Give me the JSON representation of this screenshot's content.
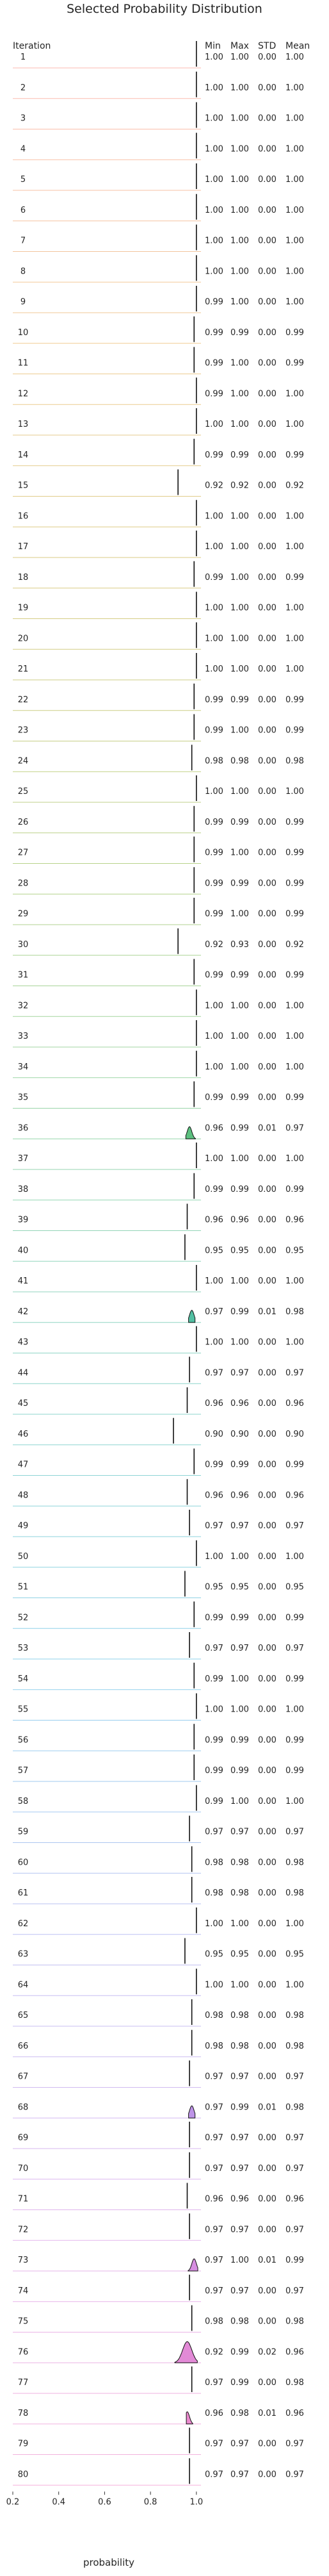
{
  "chart_data": {
    "type": "ridgeline",
    "title": "Selected Probability Distribution",
    "row_header": "Iteration",
    "stat_headers": [
      "Min",
      "Max",
      "STD",
      "Mean"
    ],
    "xlabel": "probability",
    "xlim": [
      0.2,
      1.02
    ],
    "x_ticks": [
      0.2,
      0.4,
      0.6,
      0.8,
      1.0
    ],
    "x_tick_labels": [
      "0.2",
      "0.4",
      "0.6",
      "0.8",
      "1.0"
    ],
    "colormap": [
      "#fb8072",
      "#e4a23a",
      "#b7a21d",
      "#7bae2a",
      "#3fb56a",
      "#2fb3a5",
      "#36ace0",
      "#8d8be8",
      "#c77ae0",
      "#f073c0"
    ],
    "rows": [
      {
        "iteration": "1",
        "min": "1.00",
        "max": "1.00",
        "std": "0.00",
        "mean": "1.00"
      },
      {
        "iteration": "2",
        "min": "1.00",
        "max": "1.00",
        "std": "0.00",
        "mean": "1.00"
      },
      {
        "iteration": "3",
        "min": "1.00",
        "max": "1.00",
        "std": "0.00",
        "mean": "1.00"
      },
      {
        "iteration": "4",
        "min": "1.00",
        "max": "1.00",
        "std": "0.00",
        "mean": "1.00"
      },
      {
        "iteration": "5",
        "min": "1.00",
        "max": "1.00",
        "std": "0.00",
        "mean": "1.00"
      },
      {
        "iteration": "6",
        "min": "1.00",
        "max": "1.00",
        "std": "0.00",
        "mean": "1.00"
      },
      {
        "iteration": "7",
        "min": "1.00",
        "max": "1.00",
        "std": "0.00",
        "mean": "1.00"
      },
      {
        "iteration": "8",
        "min": "1.00",
        "max": "1.00",
        "std": "0.00",
        "mean": "1.00"
      },
      {
        "iteration": "9",
        "min": "0.99",
        "max": "1.00",
        "std": "0.00",
        "mean": "1.00"
      },
      {
        "iteration": "10",
        "min": "0.99",
        "max": "0.99",
        "std": "0.00",
        "mean": "0.99"
      },
      {
        "iteration": "11",
        "min": "0.99",
        "max": "1.00",
        "std": "0.00",
        "mean": "0.99"
      },
      {
        "iteration": "12",
        "min": "0.99",
        "max": "1.00",
        "std": "0.00",
        "mean": "1.00"
      },
      {
        "iteration": "13",
        "min": "1.00",
        "max": "1.00",
        "std": "0.00",
        "mean": "1.00"
      },
      {
        "iteration": "14",
        "min": "0.99",
        "max": "0.99",
        "std": "0.00",
        "mean": "0.99"
      },
      {
        "iteration": "15",
        "min": "0.92",
        "max": "0.92",
        "std": "0.00",
        "mean": "0.92"
      },
      {
        "iteration": "16",
        "min": "1.00",
        "max": "1.00",
        "std": "0.00",
        "mean": "1.00"
      },
      {
        "iteration": "17",
        "min": "1.00",
        "max": "1.00",
        "std": "0.00",
        "mean": "1.00"
      },
      {
        "iteration": "18",
        "min": "0.99",
        "max": "1.00",
        "std": "0.00",
        "mean": "0.99"
      },
      {
        "iteration": "19",
        "min": "1.00",
        "max": "1.00",
        "std": "0.00",
        "mean": "1.00"
      },
      {
        "iteration": "20",
        "min": "1.00",
        "max": "1.00",
        "std": "0.00",
        "mean": "1.00"
      },
      {
        "iteration": "21",
        "min": "1.00",
        "max": "1.00",
        "std": "0.00",
        "mean": "1.00"
      },
      {
        "iteration": "22",
        "min": "0.99",
        "max": "0.99",
        "std": "0.00",
        "mean": "0.99"
      },
      {
        "iteration": "23",
        "min": "0.99",
        "max": "1.00",
        "std": "0.00",
        "mean": "0.99"
      },
      {
        "iteration": "24",
        "min": "0.98",
        "max": "0.98",
        "std": "0.00",
        "mean": "0.98"
      },
      {
        "iteration": "25",
        "min": "1.00",
        "max": "1.00",
        "std": "0.00",
        "mean": "1.00"
      },
      {
        "iteration": "26",
        "min": "0.99",
        "max": "0.99",
        "std": "0.00",
        "mean": "0.99"
      },
      {
        "iteration": "27",
        "min": "0.99",
        "max": "1.00",
        "std": "0.00",
        "mean": "0.99"
      },
      {
        "iteration": "28",
        "min": "0.99",
        "max": "0.99",
        "std": "0.00",
        "mean": "0.99"
      },
      {
        "iteration": "29",
        "min": "0.99",
        "max": "1.00",
        "std": "0.00",
        "mean": "0.99"
      },
      {
        "iteration": "30",
        "min": "0.92",
        "max": "0.93",
        "std": "0.00",
        "mean": "0.92"
      },
      {
        "iteration": "31",
        "min": "0.99",
        "max": "0.99",
        "std": "0.00",
        "mean": "0.99"
      },
      {
        "iteration": "32",
        "min": "1.00",
        "max": "1.00",
        "std": "0.00",
        "mean": "1.00"
      },
      {
        "iteration": "33",
        "min": "1.00",
        "max": "1.00",
        "std": "0.00",
        "mean": "1.00"
      },
      {
        "iteration": "34",
        "min": "1.00",
        "max": "1.00",
        "std": "0.00",
        "mean": "1.00"
      },
      {
        "iteration": "35",
        "min": "0.99",
        "max": "0.99",
        "std": "0.00",
        "mean": "0.99"
      },
      {
        "iteration": "36",
        "min": "0.96",
        "max": "0.99",
        "std": "0.01",
        "mean": "0.97"
      },
      {
        "iteration": "37",
        "min": "1.00",
        "max": "1.00",
        "std": "0.00",
        "mean": "1.00"
      },
      {
        "iteration": "38",
        "min": "0.99",
        "max": "0.99",
        "std": "0.00",
        "mean": "0.99"
      },
      {
        "iteration": "39",
        "min": "0.96",
        "max": "0.96",
        "std": "0.00",
        "mean": "0.96"
      },
      {
        "iteration": "40",
        "min": "0.95",
        "max": "0.95",
        "std": "0.00",
        "mean": "0.95"
      },
      {
        "iteration": "41",
        "min": "1.00",
        "max": "1.00",
        "std": "0.00",
        "mean": "1.00"
      },
      {
        "iteration": "42",
        "min": "0.97",
        "max": "0.99",
        "std": "0.01",
        "mean": "0.98"
      },
      {
        "iteration": "43",
        "min": "1.00",
        "max": "1.00",
        "std": "0.00",
        "mean": "1.00"
      },
      {
        "iteration": "44",
        "min": "0.97",
        "max": "0.97",
        "std": "0.00",
        "mean": "0.97"
      },
      {
        "iteration": "45",
        "min": "0.96",
        "max": "0.96",
        "std": "0.00",
        "mean": "0.96"
      },
      {
        "iteration": "46",
        "min": "0.90",
        "max": "0.90",
        "std": "0.00",
        "mean": "0.90"
      },
      {
        "iteration": "47",
        "min": "0.99",
        "max": "0.99",
        "std": "0.00",
        "mean": "0.99"
      },
      {
        "iteration": "48",
        "min": "0.96",
        "max": "0.96",
        "std": "0.00",
        "mean": "0.96"
      },
      {
        "iteration": "49",
        "min": "0.97",
        "max": "0.97",
        "std": "0.00",
        "mean": "0.97"
      },
      {
        "iteration": "50",
        "min": "1.00",
        "max": "1.00",
        "std": "0.00",
        "mean": "1.00"
      },
      {
        "iteration": "51",
        "min": "0.95",
        "max": "0.95",
        "std": "0.00",
        "mean": "0.95"
      },
      {
        "iteration": "52",
        "min": "0.99",
        "max": "0.99",
        "std": "0.00",
        "mean": "0.99"
      },
      {
        "iteration": "53",
        "min": "0.97",
        "max": "0.97",
        "std": "0.00",
        "mean": "0.97"
      },
      {
        "iteration": "54",
        "min": "0.99",
        "max": "1.00",
        "std": "0.00",
        "mean": "0.99"
      },
      {
        "iteration": "55",
        "min": "1.00",
        "max": "1.00",
        "std": "0.00",
        "mean": "1.00"
      },
      {
        "iteration": "56",
        "min": "0.99",
        "max": "0.99",
        "std": "0.00",
        "mean": "0.99"
      },
      {
        "iteration": "57",
        "min": "0.99",
        "max": "0.99",
        "std": "0.00",
        "mean": "0.99"
      },
      {
        "iteration": "58",
        "min": "0.99",
        "max": "1.00",
        "std": "0.00",
        "mean": "1.00"
      },
      {
        "iteration": "59",
        "min": "0.97",
        "max": "0.97",
        "std": "0.00",
        "mean": "0.97"
      },
      {
        "iteration": "60",
        "min": "0.98",
        "max": "0.98",
        "std": "0.00",
        "mean": "0.98"
      },
      {
        "iteration": "61",
        "min": "0.98",
        "max": "0.98",
        "std": "0.00",
        "mean": "0.98"
      },
      {
        "iteration": "62",
        "min": "1.00",
        "max": "1.00",
        "std": "0.00",
        "mean": "1.00"
      },
      {
        "iteration": "63",
        "min": "0.95",
        "max": "0.95",
        "std": "0.00",
        "mean": "0.95"
      },
      {
        "iteration": "64",
        "min": "1.00",
        "max": "1.00",
        "std": "0.00",
        "mean": "1.00"
      },
      {
        "iteration": "65",
        "min": "0.98",
        "max": "0.98",
        "std": "0.00",
        "mean": "0.98"
      },
      {
        "iteration": "66",
        "min": "0.98",
        "max": "0.98",
        "std": "0.00",
        "mean": "0.98"
      },
      {
        "iteration": "67",
        "min": "0.97",
        "max": "0.97",
        "std": "0.00",
        "mean": "0.97"
      },
      {
        "iteration": "68",
        "min": "0.97",
        "max": "0.99",
        "std": "0.01",
        "mean": "0.98"
      },
      {
        "iteration": "69",
        "min": "0.97",
        "max": "0.97",
        "std": "0.00",
        "mean": "0.97"
      },
      {
        "iteration": "70",
        "min": "0.97",
        "max": "0.97",
        "std": "0.00",
        "mean": "0.97"
      },
      {
        "iteration": "71",
        "min": "0.96",
        "max": "0.96",
        "std": "0.00",
        "mean": "0.96"
      },
      {
        "iteration": "72",
        "min": "0.97",
        "max": "0.97",
        "std": "0.00",
        "mean": "0.97"
      },
      {
        "iteration": "73",
        "min": "0.97",
        "max": "1.00",
        "std": "0.01",
        "mean": "0.99"
      },
      {
        "iteration": "74",
        "min": "0.97",
        "max": "0.97",
        "std": "0.00",
        "mean": "0.97"
      },
      {
        "iteration": "75",
        "min": "0.98",
        "max": "0.98",
        "std": "0.00",
        "mean": "0.98"
      },
      {
        "iteration": "76",
        "min": "0.92",
        "max": "0.99",
        "std": "0.02",
        "mean": "0.96"
      },
      {
        "iteration": "77",
        "min": "0.97",
        "max": "0.99",
        "std": "0.00",
        "mean": "0.98"
      },
      {
        "iteration": "78",
        "min": "0.96",
        "max": "0.98",
        "std": "0.01",
        "mean": "0.96"
      },
      {
        "iteration": "79",
        "min": "0.97",
        "max": "0.97",
        "std": "0.00",
        "mean": "0.97"
      },
      {
        "iteration": "80",
        "min": "0.97",
        "max": "0.97",
        "std": "0.00",
        "mean": "0.97"
      }
    ]
  }
}
